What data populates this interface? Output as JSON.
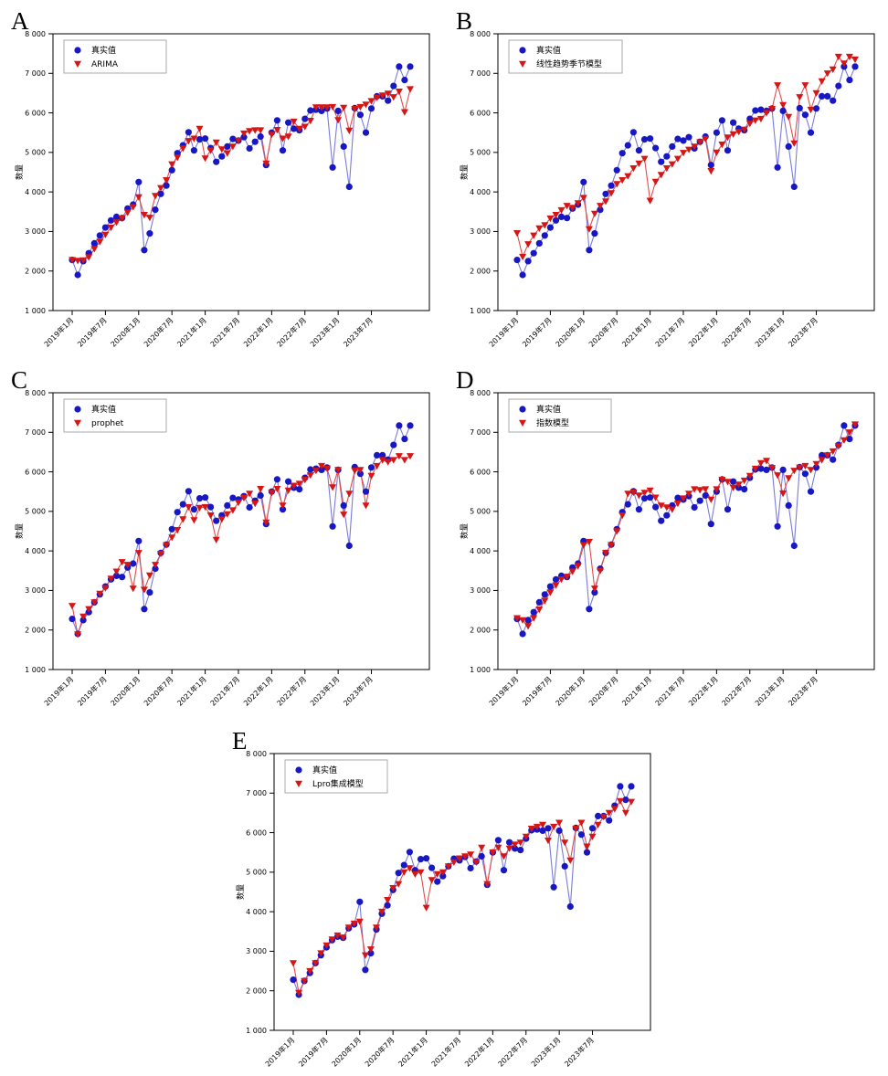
{
  "figure": {
    "background": "#ffffff",
    "description_labels": {
      "actual": "真实值"
    }
  },
  "colors": {
    "actual_marker": "#1717c4",
    "actual_line": "#7b7bd9",
    "model_marker": "#d61515",
    "model_line": "#e24d4d",
    "frame": "#000000",
    "legend_border": "#aaaaaa",
    "tick_text": "#111111"
  },
  "chart_data": {
    "type": "line",
    "ylabel": "数量",
    "xlabel": "",
    "ylim": [
      1000,
      8000
    ],
    "y_ticks": [
      1000,
      2000,
      3000,
      4000,
      5000,
      6000,
      7000,
      8000
    ],
    "y_tick_labels": [
      "1 000",
      "2 000",
      "3 000",
      "4 000",
      "5 000",
      "6 000",
      "7 000",
      "8 000"
    ],
    "x_tick_labels": [
      "2019年1月",
      "2019年7月",
      "2020年1月",
      "2020年7月",
      "2021年1月",
      "2021年7月",
      "2022年1月",
      "2022年7月",
      "2023年1月",
      "2023年7月"
    ],
    "x_tick_indices": [
      0,
      6,
      12,
      18,
      24,
      30,
      36,
      42,
      48,
      54
    ],
    "n_points": 62,
    "legend_position": "upper-left",
    "grid": false,
    "actual_series_name": "真实值",
    "actual": [
      2280,
      1900,
      2250,
      2450,
      2700,
      2900,
      3100,
      3280,
      3370,
      3340,
      3580,
      3680,
      4250,
      2530,
      2950,
      3550,
      3950,
      4160,
      4550,
      4980,
      5180,
      5510,
      5050,
      5330,
      5350,
      5110,
      4760,
      4900,
      5150,
      5340,
      5300,
      5385,
      5100,
      5270,
      5400,
      4680,
      5500,
      5810,
      5050,
      5755,
      5600,
      5560,
      5850,
      6060,
      6080,
      6050,
      6110,
      4620,
      6050,
      5150,
      4130,
      6120,
      5950,
      5500,
      6110,
      6420,
      6420,
      6310,
      6680,
      7170,
      6830,
      7170
    ],
    "subplots": [
      {
        "letter": "A",
        "model_name": "ARIMA",
        "model": [
          2280,
          2260,
          2270,
          2350,
          2560,
          2740,
          2920,
          3100,
          3230,
          3330,
          3480,
          3620,
          3870,
          3420,
          3350,
          3900,
          4100,
          4300,
          4700,
          4870,
          5100,
          5290,
          5350,
          5600,
          4850,
          5050,
          5250,
          5080,
          4980,
          5150,
          5300,
          5480,
          5540,
          5560,
          5560,
          4720,
          5450,
          5570,
          5350,
          5400,
          5780,
          5600,
          5650,
          5800,
          6140,
          6140,
          6140,
          6150,
          5820,
          6130,
          5550,
          6100,
          6150,
          6210,
          6300,
          6385,
          6440,
          6490,
          6400,
          6540,
          6020,
          6600
        ]
      },
      {
        "letter": "B",
        "model_name": "线性趋势季节模型",
        "model": [
          2960,
          2360,
          2680,
          2900,
          3080,
          3160,
          3330,
          3420,
          3540,
          3650,
          3600,
          3715,
          3850,
          3060,
          3450,
          3650,
          3760,
          3970,
          4200,
          4300,
          4400,
          4600,
          4720,
          4840,
          3780,
          4260,
          4430,
          4600,
          4700,
          4840,
          4990,
          5070,
          5150,
          5260,
          5340,
          4530,
          5000,
          5200,
          5380,
          5460,
          5520,
          5580,
          5730,
          5810,
          5850,
          6000,
          6100,
          6700,
          6200,
          5900,
          5230,
          6400,
          6700,
          6080,
          6500,
          6800,
          7000,
          7100,
          7420,
          7250,
          7420,
          7350
        ]
      },
      {
        "letter": "C",
        "model_name": "prophet",
        "model": [
          2610,
          1890,
          2340,
          2530,
          2700,
          2920,
          3060,
          3300,
          3480,
          3720,
          3650,
          3050,
          3950,
          3020,
          3380,
          3650,
          3930,
          4150,
          4340,
          4530,
          4800,
          5110,
          4780,
          5090,
          5110,
          4900,
          4280,
          4800,
          4930,
          5030,
          5220,
          5340,
          5450,
          5200,
          5570,
          4720,
          5470,
          5570,
          5150,
          5530,
          5650,
          5700,
          5800,
          5915,
          6030,
          6150,
          6085,
          5610,
          6050,
          4920,
          5450,
          6030,
          6050,
          5150,
          5900,
          6150,
          6300,
          6250,
          6300,
          6400,
          6300,
          6400
        ]
      },
      {
        "letter": "D",
        "model_name": "指数模型",
        "model": [
          2300,
          2250,
          2100,
          2300,
          2520,
          2740,
          2950,
          3130,
          3280,
          3350,
          3480,
          3620,
          4150,
          4230,
          3050,
          3500,
          3950,
          4150,
          4500,
          4900,
          5450,
          5480,
          5400,
          5470,
          5530,
          5350,
          5150,
          5100,
          5050,
          5200,
          5330,
          5450,
          5560,
          5540,
          5560,
          5300,
          5560,
          5800,
          5750,
          5600,
          5680,
          5780,
          5900,
          6080,
          6220,
          6280,
          6100,
          5915,
          5455,
          5840,
          6030,
          6110,
          6150,
          6050,
          6200,
          6300,
          6420,
          6520,
          6650,
          6800,
          7000,
          7200
        ]
      },
      {
        "letter": "E",
        "model_name": "Lpro集成模型",
        "model": [
          2700,
          1950,
          2250,
          2500,
          2700,
          2950,
          3150,
          3300,
          3400,
          3350,
          3600,
          3700,
          3750,
          2900,
          3050,
          3600,
          4000,
          4300,
          4600,
          4700,
          5000,
          5100,
          4950,
          5000,
          4100,
          4800,
          4950,
          5000,
          5150,
          5250,
          5350,
          5400,
          5450,
          5250,
          5620,
          4700,
          5500,
          5620,
          5400,
          5600,
          5700,
          5750,
          5900,
          6100,
          6150,
          6200,
          5800,
          6150,
          6250,
          5750,
          5300,
          6100,
          6250,
          5650,
          5900,
          6200,
          6400,
          6500,
          6600,
          6800,
          6500,
          6780
        ]
      }
    ]
  }
}
